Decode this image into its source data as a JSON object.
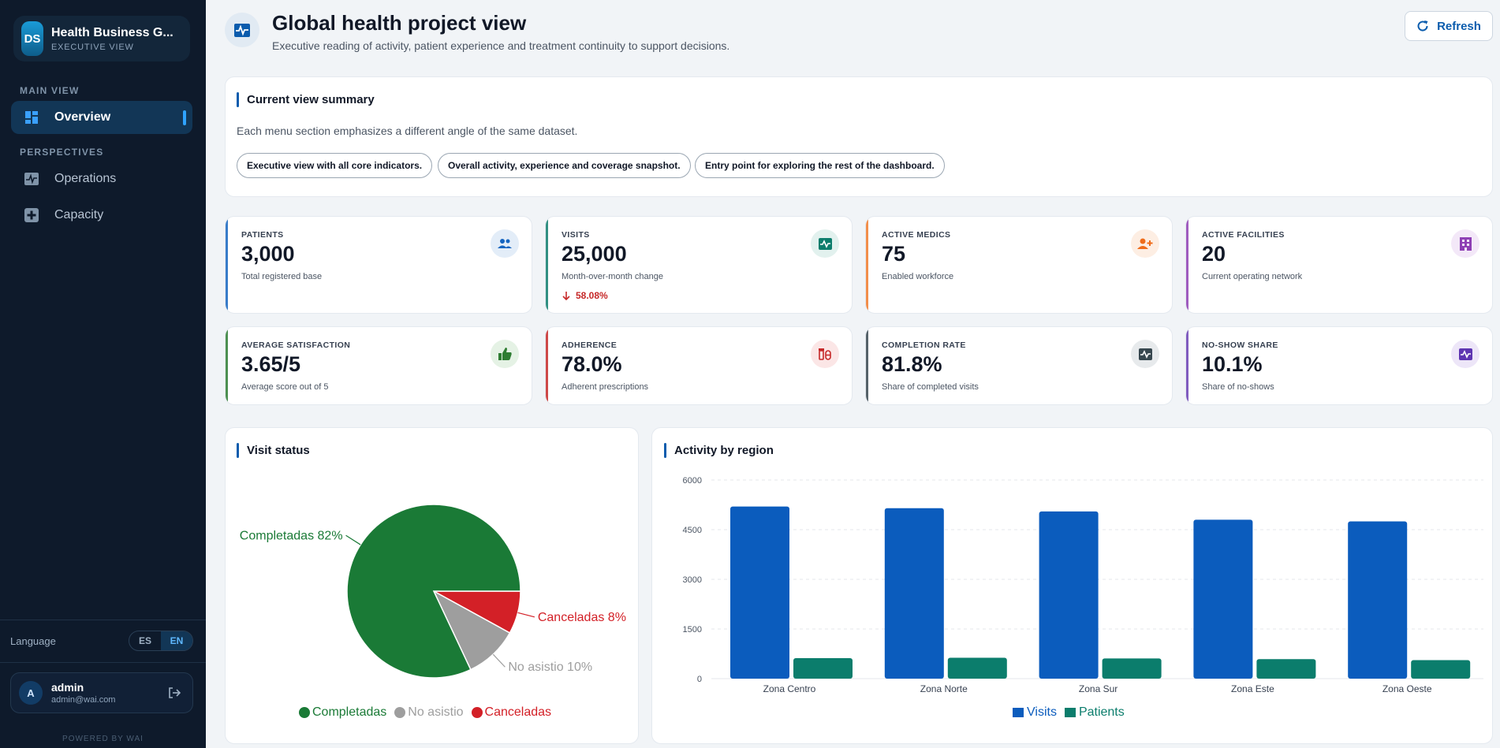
{
  "sidebar": {
    "brand_initials": "DS",
    "brand_title": "Health Business G...",
    "brand_subtitle": "EXECUTIVE VIEW",
    "section_main": "MAIN VIEW",
    "section_perspectives": "PERSPECTIVES",
    "items": [
      {
        "label": "Overview",
        "icon": "dashboard-icon",
        "active": true
      },
      {
        "label": "Operations",
        "icon": "pulse-icon",
        "active": false
      },
      {
        "label": "Capacity",
        "icon": "medical-cross-icon",
        "active": false
      }
    ],
    "language_label": "Language",
    "lang_es": "ES",
    "lang_en": "EN",
    "user_initial": "A",
    "user_name": "admin",
    "user_email": "admin@wai.com",
    "powered": "POWERED BY WAI"
  },
  "header": {
    "title": "Global health project view",
    "subtitle": "Executive reading of activity, patient experience and treatment continuity to support decisions.",
    "refresh_label": "Refresh"
  },
  "summary": {
    "title": "Current view summary",
    "text": "Each menu section emphasizes a different angle of the same dataset.",
    "pills": [
      "Executive view with all core indicators.",
      "Overall activity, experience and coverage snapshot.",
      "Entry point for exploring the rest of the dashboard."
    ]
  },
  "kpis": [
    {
      "label": "PATIENTS",
      "value": "3,000",
      "desc": "Total registered base",
      "icon": "users-icon",
      "accent": "#1565c0",
      "icon_bg": "#e3edf8",
      "icon_color": "#1565c0"
    },
    {
      "label": "VISITS",
      "value": "25,000",
      "desc": "Month-over-month change",
      "change": "58.08%",
      "icon": "pulse-icon",
      "accent": "#0d7d6c",
      "icon_bg": "#e2f1ee",
      "icon_color": "#0d7d6c"
    },
    {
      "label": "ACTIVE MEDICS",
      "value": "75",
      "desc": "Enabled workforce",
      "icon": "add-user-icon",
      "accent": "#f07a2a",
      "icon_bg": "#fdeee3",
      "icon_color": "#ef6c1a"
    },
    {
      "label": "ACTIVE FACILITIES",
      "value": "20",
      "desc": "Current operating network",
      "icon": "building-icon",
      "accent": "#8e3fb4",
      "icon_bg": "#f3e8f8",
      "icon_color": "#8e3fb4"
    },
    {
      "label": "AVERAGE SATISFACTION",
      "value": "3.65/5",
      "desc": "Average score out of 5",
      "icon": "thumbs-up-icon",
      "accent": "#2e7d32",
      "icon_bg": "#e5f2e5",
      "icon_color": "#2e7d32"
    },
    {
      "label": "ADHERENCE",
      "value": "78.0%",
      "desc": "Adherent prescriptions",
      "icon": "medication-icon",
      "accent": "#c62828",
      "icon_bg": "#fbe6e6",
      "icon_color": "#c62828"
    },
    {
      "label": "COMPLETION RATE",
      "value": "81.8%",
      "desc": "Share of completed visits",
      "icon": "pulse-icon",
      "accent": "#37474f",
      "icon_bg": "#e7eaec",
      "icon_color": "#37474f"
    },
    {
      "label": "NO-SHOW SHARE",
      "value": "10.1%",
      "desc": "Share of no-shows",
      "icon": "pulse-icon",
      "accent": "#6a3fb4",
      "icon_bg": "#ede6f8",
      "icon_color": "#5e35b1"
    }
  ],
  "visit_status": {
    "title": "Visit status"
  },
  "region_chart": {
    "title": "Activity by region"
  },
  "chart_data": [
    {
      "type": "pie",
      "categories": [
        "Completadas",
        "No asistio",
        "Canceladas"
      ],
      "values": [
        82,
        10,
        8
      ],
      "slice_labels": [
        "Completadas 82%",
        "No asistio 10%",
        "Canceladas 8%"
      ],
      "colors": [
        "#1a7a36",
        "#9e9e9e",
        "#d32027"
      ],
      "legend": "bottom"
    },
    {
      "type": "bar",
      "categories": [
        "Zona Centro",
        "Zona Norte",
        "Zona Sur",
        "Zona Este",
        "Zona Oeste"
      ],
      "series": [
        {
          "name": "Visits",
          "values": [
            5200,
            5150,
            5050,
            4800,
            4750
          ],
          "color": "#0b5cbd"
        },
        {
          "name": "Patients",
          "values": [
            620,
            630,
            610,
            590,
            560
          ],
          "color": "#0b7d6c"
        }
      ],
      "yticks": [
        "0",
        "1500",
        "3000",
        "4500",
        "6000"
      ],
      "ylim": [
        0,
        6000
      ],
      "grid": true,
      "legend": "bottom"
    }
  ]
}
